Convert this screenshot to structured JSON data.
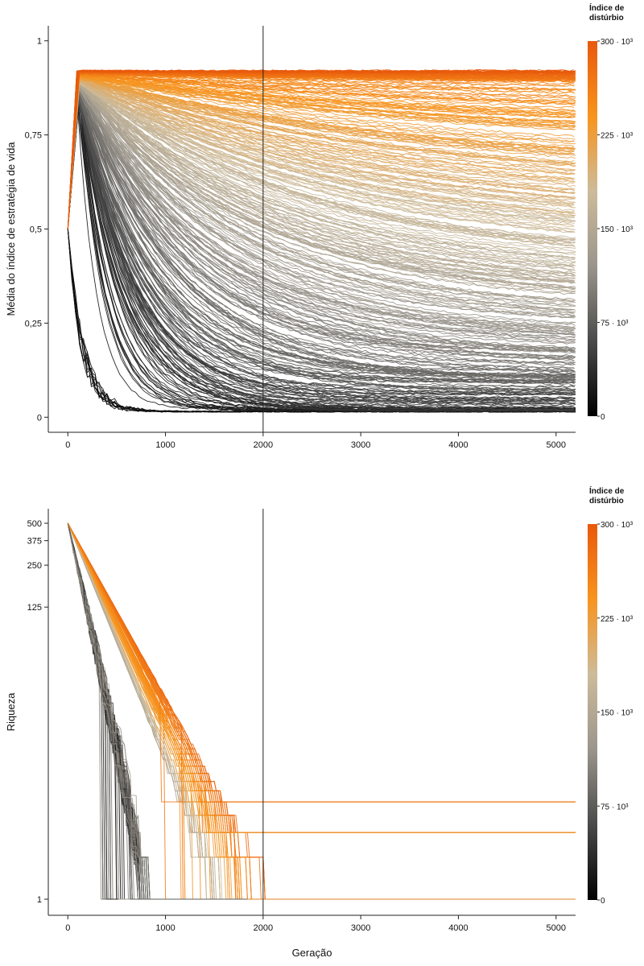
{
  "chart_data": [
    {
      "type": "line",
      "xlabel": "",
      "ylabel": "Média do índice de estratégia de vida",
      "xticks": [
        "0",
        "1000",
        "2000",
        "3000",
        "4000",
        "5000"
      ],
      "yticks": [
        {
          "value": 0,
          "label": "0"
        },
        {
          "value": 0.25,
          "label": "0,25"
        },
        {
          "value": 0.5,
          "label": "0,5"
        },
        {
          "value": 0.75,
          "label": "0,75"
        },
        {
          "value": 1,
          "label": "1"
        }
      ],
      "xlim": [
        -200,
        5200
      ],
      "ylim": [
        -0.04,
        1.04
      ],
      "vline_x": 2000,
      "start": {
        "x": 0,
        "y": 0.5
      },
      "high_plateau_y": 0.92,
      "low_plateau_y": 0.015,
      "series_count": 420,
      "color_scale": {
        "min": 0,
        "max": 300000,
        "stops": [
          "#000000",
          "#4a4a4a",
          "#9a958c",
          "#cdbb9a",
          "#f7941d",
          "#e8590c"
        ]
      },
      "legend": {
        "title_line1": "Índice de",
        "title_line2": "distúrbio",
        "ticks": [
          {
            "value": 0,
            "label": "0"
          },
          {
            "value": 75000,
            "label": "75 · 10³"
          },
          {
            "value": 150000,
            "label": "150 · 10³"
          },
          {
            "value": 225000,
            "label": "225 · 10³"
          },
          {
            "value": 300000,
            "label": "300 · 10³"
          }
        ],
        "placement": "right"
      }
    },
    {
      "type": "line",
      "xlabel": "Geração",
      "ylabel": "Riqueza",
      "yscale": "log",
      "xticks": [
        "0",
        "1000",
        "2000",
        "3000",
        "4000",
        "5000"
      ],
      "yticks": [
        {
          "value": 1,
          "label": "1"
        },
        {
          "value": 125,
          "label": "125"
        },
        {
          "value": 250,
          "label": "250"
        },
        {
          "value": 375,
          "label": "375"
        },
        {
          "value": 500,
          "label": "500"
        }
      ],
      "xlim": [
        -200,
        5200
      ],
      "ylim": [
        1,
        500
      ],
      "vline_x": 2000,
      "start_y": 500,
      "final_levels": [
        1,
        3,
        5
      ],
      "series_count": 160,
      "color_scale": {
        "min": 0,
        "max": 300000,
        "stops": [
          "#000000",
          "#4a4a4a",
          "#9a958c",
          "#cdbb9a",
          "#f7941d",
          "#e8590c"
        ]
      },
      "legend": {
        "title_line1": "Índice de",
        "title_line2": "distúrbio",
        "ticks": [
          {
            "value": 0,
            "label": "0"
          },
          {
            "value": 75000,
            "label": "75 · 10³"
          },
          {
            "value": 150000,
            "label": "150 · 10³"
          },
          {
            "value": 225000,
            "label": "225 · 10³"
          },
          {
            "value": 300000,
            "label": "300 · 10³"
          }
        ],
        "placement": "right"
      }
    }
  ]
}
